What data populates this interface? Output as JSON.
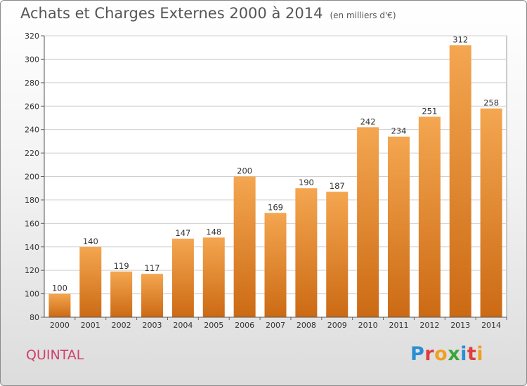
{
  "title": "Achats et Charges Externes 2000 à 2014",
  "subtitle": "(en milliers d'€)",
  "location": "QUINTAL",
  "logo_text": [
    "P",
    "r",
    "o",
    "x",
    "i",
    "t",
    "i"
  ],
  "logo_colors": [
    "#2a8ed4",
    "#e03c3c",
    "#f0a020",
    "#3aa63a",
    "#2a8ed4",
    "#e03c3c",
    "#f0a020"
  ],
  "colors": {
    "bar_top": "#f4a650",
    "bar_bottom": "#cc6a14",
    "grid": "#d0d0d0"
  },
  "chart_data": {
    "type": "bar",
    "categories": [
      "2000",
      "2001",
      "2002",
      "2003",
      "2004",
      "2005",
      "2006",
      "2007",
      "2008",
      "2009",
      "2010",
      "2011",
      "2012",
      "2013",
      "2014"
    ],
    "values": [
      100,
      140,
      119,
      117,
      147,
      148,
      200,
      169,
      190,
      187,
      242,
      234,
      251,
      312,
      258
    ],
    "ylim": [
      80,
      320
    ],
    "yticks": [
      80,
      100,
      120,
      140,
      160,
      180,
      200,
      220,
      240,
      260,
      280,
      300,
      320
    ],
    "grid": true,
    "data_labels": true
  }
}
